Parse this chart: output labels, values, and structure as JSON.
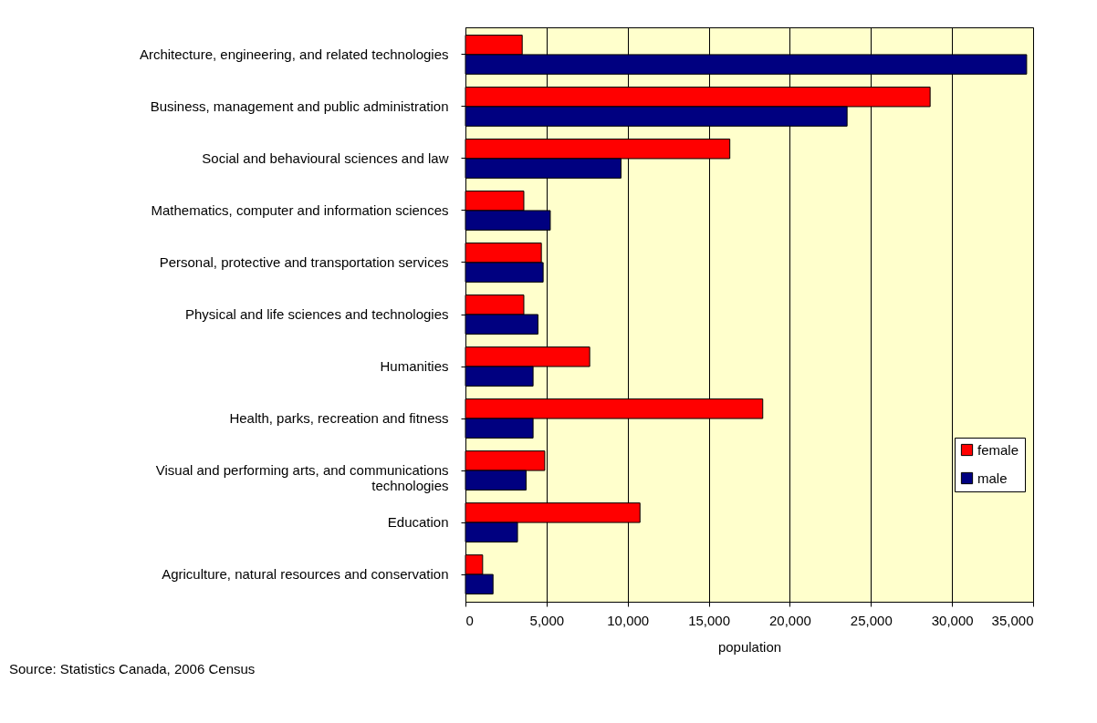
{
  "chart_data": {
    "type": "bar",
    "orientation": "horizontal",
    "xlabel": "population",
    "categories": [
      "Architecture, engineering, and related technologies",
      "Business, management and public administration",
      "Social and behavioural sciences and law",
      "Mathematics, computer and information sciences",
      "Personal, protective and transportation services",
      "Physical and life sciences and technologies",
      "Humanities",
      "Health, parks, recreation and fitness",
      "Visual and performing arts, and communications technologies",
      "Education",
      "Agriculture, natural resources and conservation"
    ],
    "series": [
      {
        "name": "female",
        "color": "#ff0000",
        "values": [
          3500,
          28650,
          16300,
          3600,
          4680,
          3600,
          7660,
          18330,
          4890,
          10760,
          1060
        ]
      },
      {
        "name": "male",
        "color": "#000080",
        "values": [
          34600,
          23530,
          9590,
          5230,
          4790,
          4470,
          4170,
          4170,
          3740,
          3210,
          1700
        ]
      }
    ],
    "xlim": [
      0,
      35000
    ],
    "xticks": [
      {
        "value": 0,
        "label": "0"
      },
      {
        "value": 5000,
        "label": "5,000"
      },
      {
        "value": 10000,
        "label": "10,000"
      },
      {
        "value": 15000,
        "label": "15,000"
      },
      {
        "value": 20000,
        "label": "20,000"
      },
      {
        "value": 25000,
        "label": "25,000"
      },
      {
        "value": 30000,
        "label": "30,000"
      },
      {
        "value": 35000,
        "label": "35,000"
      }
    ],
    "grid": "x",
    "legend": "right",
    "annotations": [
      "Source: Statistics Canada, 2006 Census"
    ]
  }
}
